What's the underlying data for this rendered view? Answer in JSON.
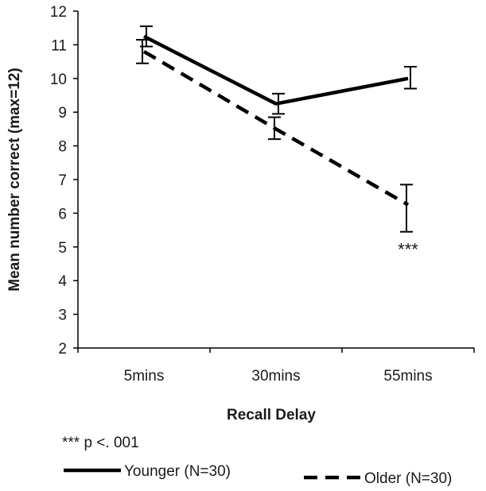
{
  "chart_data": {
    "type": "line",
    "categories": [
      "5mins",
      "30mins",
      "55mins"
    ],
    "xlabel": "Recall Delay",
    "ylabel": "Mean number correct (max=12)",
    "ylim": [
      2,
      12
    ],
    "yticks": [
      2,
      3,
      4,
      5,
      6,
      7,
      8,
      9,
      10,
      11,
      12
    ],
    "grid": false,
    "legend_position": "bottom",
    "series": [
      {
        "name": "Younger (N=30)",
        "style": "solid",
        "values": [
          11.25,
          9.25,
          10.0
        ],
        "error_low": [
          10.95,
          8.95,
          9.7
        ],
        "error_high": [
          11.55,
          9.55,
          10.35
        ]
      },
      {
        "name": "Older (N=30)",
        "style": "dashed",
        "values": [
          10.8,
          8.5,
          6.25
        ],
        "error_low": [
          10.45,
          8.2,
          5.45
        ],
        "error_high": [
          11.15,
          8.85,
          6.85
        ]
      }
    ],
    "annotations": [
      {
        "text": "***",
        "category": "55mins"
      }
    ],
    "note": "*** p <. 001",
    "colors": {
      "line": "#000000",
      "text": "#1a1a1a"
    }
  }
}
